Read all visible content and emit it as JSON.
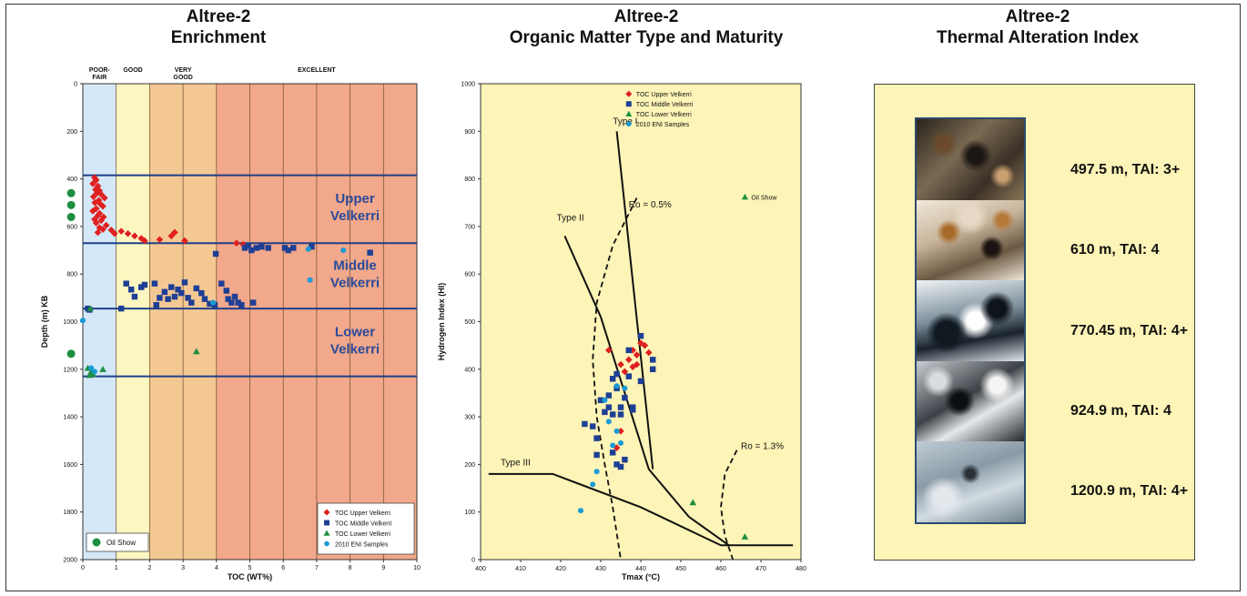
{
  "panels": [
    {
      "title_line1": "Altree-2",
      "title_line2": "Enrichment"
    },
    {
      "title_line1": "Altree-2",
      "title_line2": "Organic Matter Type and Maturity"
    },
    {
      "title_line1": "Altree-2",
      "title_line2": "Thermal Alteration Index"
    }
  ],
  "chart_data": [
    {
      "type": "scatter",
      "xlabel": "TOC (WT%)",
      "ylabel": "Depth (m) KB",
      "xlim": [
        0,
        10
      ],
      "ylim": [
        2000,
        0
      ],
      "x_ticks": [
        0,
        1,
        2,
        3,
        4,
        5,
        6,
        7,
        8,
        9,
        10
      ],
      "y_ticks": [
        0,
        200,
        400,
        600,
        800,
        1000,
        1200,
        1400,
        1600,
        1800,
        2000
      ],
      "richness_bands": [
        {
          "label": "POOR-\nFAIR",
          "from": 0,
          "to": 1,
          "color": "#d4e8f7"
        },
        {
          "label": "GOOD",
          "from": 1,
          "to": 2,
          "color": "#fcf6c0"
        },
        {
          "label": "VERY\nGOOD",
          "from": 2,
          "to": 4,
          "color": "#f4c893"
        },
        {
          "label": "EXCELLENT",
          "from": 4,
          "to": 10,
          "color": "#f2a88a"
        }
      ],
      "zone_boundaries": [
        385,
        670,
        945,
        1230
      ],
      "zones": [
        {
          "line1": "Upper",
          "line2": "Velkerri",
          "depth": 527
        },
        {
          "line1": "Middle",
          "line2": "Velkerri",
          "depth": 808
        },
        {
          "line1": "Lower",
          "line2": "Velkerri",
          "depth": 1088
        }
      ],
      "oil_show_label": "Oil Show",
      "oil_show": [
        {
          "x": -0.35,
          "y": 460
        },
        {
          "x": -0.35,
          "y": 510
        },
        {
          "x": -0.35,
          "y": 560
        },
        {
          "x": -0.35,
          "y": 1135
        }
      ],
      "series": [
        {
          "name": "TOC Upper Velkerri",
          "marker": "diamond",
          "color": "#e02020",
          "points": [
            [
              0.35,
              395
            ],
            [
              0.4,
              405
            ],
            [
              0.3,
              420
            ],
            [
              0.45,
              430
            ],
            [
              0.38,
              445
            ],
            [
              0.5,
              450
            ],
            [
              0.42,
              460
            ],
            [
              0.55,
              465
            ],
            [
              0.32,
              475
            ],
            [
              0.65,
              480
            ],
            [
              0.48,
              490
            ],
            [
              0.36,
              500
            ],
            [
              0.52,
              505
            ],
            [
              0.6,
              515
            ],
            [
              0.4,
              525
            ],
            [
              0.3,
              535
            ],
            [
              0.5,
              545
            ],
            [
              0.45,
              555
            ],
            [
              0.62,
              560
            ],
            [
              0.35,
              570
            ],
            [
              0.55,
              575
            ],
            [
              0.4,
              585
            ],
            [
              0.7,
              595
            ],
            [
              0.5,
              605
            ],
            [
              0.6,
              612
            ],
            [
              0.45,
              625
            ],
            [
              0.85,
              615
            ],
            [
              0.95,
              630
            ],
            [
              1.15,
              620
            ],
            [
              1.35,
              630
            ],
            [
              1.55,
              640
            ],
            [
              1.75,
              650
            ],
            [
              1.85,
              660
            ],
            [
              2.3,
              655
            ],
            [
              2.65,
              640
            ],
            [
              2.75,
              625
            ],
            [
              3.05,
              660
            ],
            [
              4.6,
              670
            ],
            [
              4.8,
              675
            ]
          ]
        },
        {
          "name": "TOC Middle Velkerri",
          "marker": "square",
          "color": "#1e3f95",
          "points": [
            [
              0.15,
              945
            ],
            [
              0.2,
              950
            ],
            [
              1.15,
              945
            ],
            [
              1.3,
              840
            ],
            [
              1.45,
              865
            ],
            [
              1.55,
              895
            ],
            [
              1.75,
              855
            ],
            [
              1.85,
              845
            ],
            [
              2.15,
              840
            ],
            [
              2.2,
              930
            ],
            [
              2.3,
              900
            ],
            [
              2.45,
              875
            ],
            [
              2.55,
              905
            ],
            [
              2.65,
              855
            ],
            [
              2.75,
              895
            ],
            [
              2.85,
              865
            ],
            [
              2.95,
              880
            ],
            [
              3.05,
              835
            ],
            [
              3.15,
              900
            ],
            [
              3.25,
              920
            ],
            [
              3.4,
              860
            ],
            [
              3.55,
              880
            ],
            [
              3.65,
              905
            ],
            [
              3.8,
              925
            ],
            [
              3.95,
              930
            ],
            [
              3.98,
              715
            ],
            [
              4.15,
              840
            ],
            [
              4.3,
              870
            ],
            [
              4.35,
              905
            ],
            [
              4.45,
              920
            ],
            [
              4.55,
              895
            ],
            [
              4.65,
              920
            ],
            [
              4.75,
              930
            ],
            [
              4.85,
              690
            ],
            [
              4.95,
              680
            ],
            [
              5.05,
              700
            ],
            [
              5.1,
              920
            ],
            [
              5.2,
              690
            ],
            [
              5.35,
              685
            ],
            [
              5.55,
              690
            ],
            [
              6.05,
              690
            ],
            [
              6.15,
              700
            ],
            [
              6.3,
              690
            ],
            [
              6.85,
              685
            ],
            [
              8.6,
              710
            ]
          ]
        },
        {
          "name": "TOC Lower Velkerri",
          "marker": "triangle",
          "color": "#1e8f3f",
          "points": [
            [
              0.15,
              1195
            ],
            [
              0.25,
              1210
            ],
            [
              0.3,
              1220
            ],
            [
              0.2,
              1225
            ],
            [
              0.22,
              945
            ],
            [
              0.6,
              1200
            ],
            [
              3.4,
              1125
            ]
          ]
        },
        {
          "name": "2010 ENI Samples",
          "marker": "circle",
          "color": "#1a9bd6",
          "points": [
            [
              0.0,
              995
            ],
            [
              0.25,
              1195
            ],
            [
              0.35,
              1210
            ],
            [
              3.9,
              920
            ],
            [
              6.75,
              695
            ],
            [
              7.8,
              700
            ],
            [
              6.8,
              825
            ]
          ]
        }
      ]
    },
    {
      "type": "scatter",
      "xlabel": "Tmax (°C)",
      "ylabel": "Hydrogen Index (HI)",
      "xlim": [
        400,
        480
      ],
      "ylim": [
        0,
        1000
      ],
      "x_ticks": [
        400,
        410,
        420,
        430,
        440,
        450,
        460,
        470,
        480
      ],
      "y_ticks": [
        0,
        100,
        200,
        300,
        400,
        500,
        600,
        700,
        800,
        900,
        1000
      ],
      "oil_show_label": "Oil Show",
      "oil_show_point": {
        "x": 466,
        "y": 762
      },
      "kerogen_lines": [
        {
          "label": "Type I",
          "label_at": [
            433,
            915
          ],
          "points": [
            [
              434,
              900
            ],
            [
              443,
              190
            ]
          ]
        },
        {
          "label": "Type II",
          "label_at": [
            419,
            712
          ],
          "points": [
            [
              421,
              680
            ],
            [
              430,
              510
            ],
            [
              442,
              190
            ],
            [
              452,
              90
            ],
            [
              462,
              30
            ]
          ]
        },
        {
          "label": "Type III",
          "label_at": [
            405,
            198
          ],
          "points": [
            [
              402,
              180
            ],
            [
              418,
              180
            ],
            [
              440,
              110
            ],
            [
              460,
              30
            ],
            [
              478,
              30
            ]
          ]
        }
      ],
      "ro_curves": [
        {
          "label": "Ro = 0.5%",
          "label_at": [
            437,
            740
          ],
          "points": [
            [
              439,
              760
            ],
            [
              433,
              660
            ],
            [
              429,
              540
            ],
            [
              428,
              420
            ],
            [
              429,
              300
            ],
            [
              431,
              200
            ],
            [
              433,
              110
            ],
            [
              435,
              0
            ]
          ]
        },
        {
          "label": "Ro = 1.3%",
          "label_at": [
            465,
            232
          ],
          "points": [
            [
              464,
              230
            ],
            [
              461,
              180
            ],
            [
              460,
              110
            ],
            [
              461,
              50
            ],
            [
              463,
              0
            ]
          ]
        }
      ],
      "series": [
        {
          "name": "TOC Upper Velkerri",
          "marker": "diamond",
          "color": "#e02020",
          "points": [
            [
              432,
              440
            ],
            [
              435,
              410
            ],
            [
              436,
              395
            ],
            [
              437,
              420
            ],
            [
              438,
              405
            ],
            [
              438,
              440
            ],
            [
              439,
              410
            ],
            [
              440,
              455
            ],
            [
              441,
              450
            ],
            [
              442,
              435
            ],
            [
              439,
              430
            ],
            [
              434,
              235
            ],
            [
              435,
              270
            ]
          ]
        },
        {
          "name": "TOC Middle Velkerri",
          "marker": "square",
          "color": "#1e3f95",
          "points": [
            [
              426,
              285
            ],
            [
              428,
              280
            ],
            [
              429,
              255
            ],
            [
              429,
              220
            ],
            [
              430,
              335
            ],
            [
              432,
              345
            ],
            [
              432,
              320
            ],
            [
              433,
              305
            ],
            [
              433,
              380
            ],
            [
              434,
              390
            ],
            [
              434,
              360
            ],
            [
              435,
              320
            ],
            [
              435,
              305
            ],
            [
              436,
              340
            ],
            [
              437,
              385
            ],
            [
              437,
              440
            ],
            [
              438,
              320
            ],
            [
              438,
              315
            ],
            [
              440,
              470
            ],
            [
              440,
              375
            ],
            [
              443,
              420
            ],
            [
              443,
              400
            ],
            [
              433,
              225
            ],
            [
              434,
              200
            ],
            [
              435,
              195
            ],
            [
              436,
              210
            ],
            [
              431,
              310
            ]
          ]
        },
        {
          "name": "TOC Lower Velkerri",
          "marker": "triangle",
          "color": "#1e8f3f",
          "points": [
            [
              453,
              120
            ],
            [
              466,
              48
            ]
          ]
        },
        {
          "name": "2010 ENI Samples",
          "marker": "circle",
          "color": "#1a9bd6",
          "points": [
            [
              425,
              103
            ],
            [
              428,
              158
            ],
            [
              429,
              185
            ],
            [
              431,
              335
            ],
            [
              432,
              290
            ],
            [
              434,
              270
            ],
            [
              435,
              245
            ],
            [
              436,
              360
            ],
            [
              433,
              240
            ],
            [
              434,
              365
            ]
          ]
        }
      ]
    }
  ],
  "tai_samples": [
    {
      "label": "497.5 m, TAI: 3+"
    },
    {
      "label": "610 m, TAI: 4"
    },
    {
      "label": "770.45 m, TAI: 4+"
    },
    {
      "label": "924.9 m, TAI: 4"
    },
    {
      "label": "1200.9 m, TAI: 4+"
    }
  ]
}
